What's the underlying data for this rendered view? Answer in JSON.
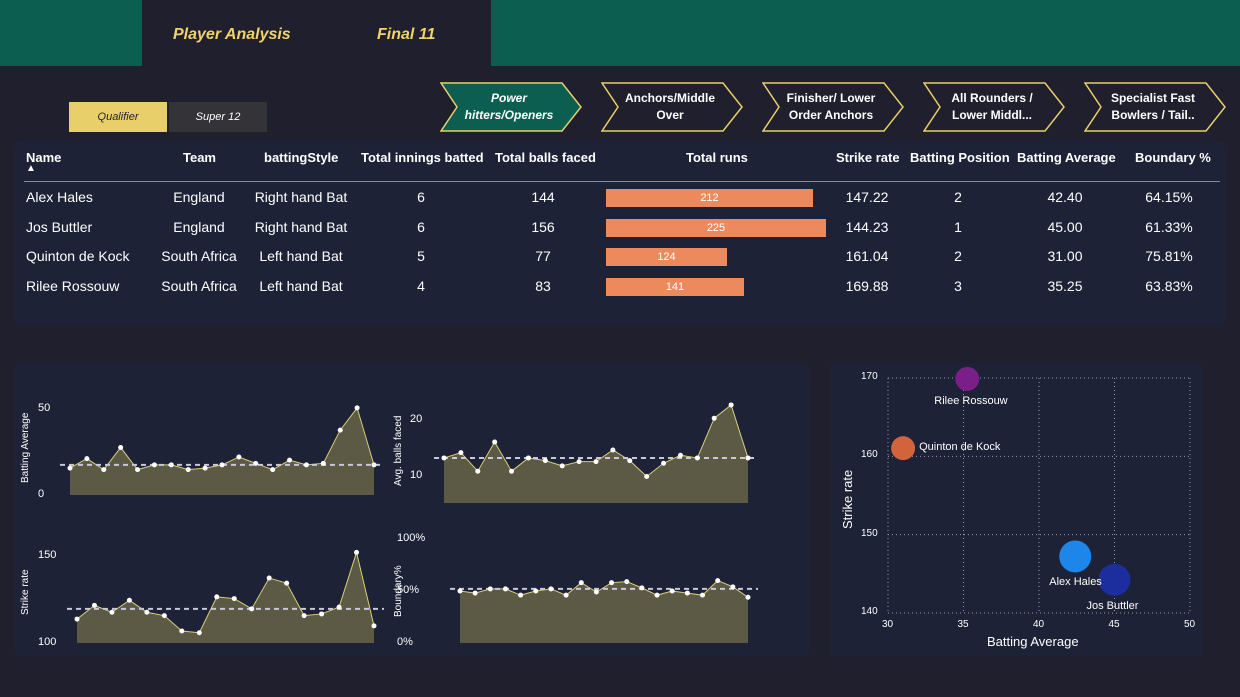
{
  "tabs": {
    "player_analysis": "Player Analysis",
    "final_11": "Final 11"
  },
  "stage_toggle": {
    "qualifier": "Qualifier",
    "super12": "Super 12"
  },
  "categories": [
    {
      "line1": "Power",
      "line2": "hitters/Openers"
    },
    {
      "line1": "Anchors/Middle",
      "line2": "Over"
    },
    {
      "line1": "Finisher/ Lower",
      "line2": "Order Anchors"
    },
    {
      "line1": "All Rounders /",
      "line2": "Lower Middl..."
    },
    {
      "line1": "Specialist Fast",
      "line2": "Bowlers / Tail.."
    }
  ],
  "table": {
    "headers": {
      "name": "Name",
      "team": "Team",
      "style": "battingStyle",
      "innings": "Total innings batted",
      "balls": "Total balls faced",
      "runs": "Total runs",
      "sr": "Strike rate",
      "pos": "Batting Position",
      "avg": "Batting Average",
      "bnd": "Boundary %"
    },
    "sort_arrow": "▲",
    "rows": [
      {
        "name": "Alex Hales",
        "team": "England",
        "style": "Right hand Bat",
        "innings": "6",
        "balls": "144",
        "runs": "212",
        "runs_value": 212,
        "sr": "147.22",
        "pos": "2",
        "avg": "42.40",
        "bnd": "64.15%"
      },
      {
        "name": "Jos Buttler",
        "team": "England",
        "style": "Right hand Bat",
        "innings": "6",
        "balls": "156",
        "runs": "225",
        "runs_value": 225,
        "sr": "144.23",
        "pos": "1",
        "avg": "45.00",
        "bnd": "61.33%"
      },
      {
        "name": "Quinton de Kock",
        "team": "South Africa",
        "style": "Left hand Bat",
        "innings": "5",
        "balls": "77",
        "runs": "124",
        "runs_value": 124,
        "sr": "161.04",
        "pos": "2",
        "avg": "31.00",
        "bnd": "75.81%"
      },
      {
        "name": "Rilee Rossouw",
        "team": "South Africa",
        "style": "Left hand Bat",
        "innings": "4",
        "balls": "83",
        "runs": "141",
        "runs_value": 141,
        "sr": "169.88",
        "pos": "3",
        "avg": "35.25",
        "bnd": "63.83%"
      }
    ]
  },
  "chart_data": [
    {
      "type": "area",
      "ylabel": "Batting Average",
      "yticks": [
        "50",
        "0"
      ],
      "ylim": [
        0,
        60
      ],
      "reference": 19,
      "values": [
        17,
        23,
        16,
        30,
        16,
        19,
        19,
        16,
        17,
        19,
        24,
        20,
        16,
        22,
        19,
        20,
        41,
        55,
        19
      ],
      "color": "#5c5a45"
    },
    {
      "type": "area",
      "ylabel": "Avg. balls faced",
      "yticks": [
        "20",
        "10"
      ],
      "ylim": [
        5,
        25
      ],
      "reference": 13.5,
      "values": [
        13.5,
        14.5,
        11,
        16.5,
        11,
        13.5,
        13,
        12,
        12.8,
        12.8,
        15,
        13,
        10,
        12.5,
        14,
        13.5,
        21,
        23.5,
        13.5
      ],
      "color": "#5c5a45"
    },
    {
      "type": "area",
      "ylabel": "Strike rate",
      "yticks": [
        "150",
        "100"
      ],
      "ylim": [
        100,
        155
      ],
      "reference": 120,
      "values": [
        114,
        122,
        118,
        125,
        118,
        116,
        107,
        106,
        127,
        126,
        120,
        138,
        135,
        116,
        117,
        121,
        153,
        110
      ],
      "color": "#5c5a45"
    },
    {
      "type": "area",
      "ylabel": "Boundary%",
      "yticks": [
        "100%",
        "50%",
        "0%"
      ],
      "ylim": [
        0,
        100
      ],
      "reference": 52,
      "values": [
        50,
        48,
        52,
        52,
        46,
        50,
        52,
        46,
        58,
        49,
        58,
        59,
        53,
        46,
        50,
        48,
        46,
        60,
        54,
        44
      ],
      "color": "#5c5a45"
    },
    {
      "type": "scatter",
      "xlabel": "Batting Average",
      "ylabel": "Strike rate",
      "xlim": [
        30,
        50
      ],
      "ylim": [
        140,
        170
      ],
      "xticks": [
        "30",
        "35",
        "40",
        "45",
        "50"
      ],
      "yticks": [
        "170",
        "160",
        "150",
        "140"
      ],
      "points": [
        {
          "label": "Rilee Rossouw",
          "x": 35.25,
          "y": 169.88,
          "color": "#7a1f8a"
        },
        {
          "label": "Quinton de Kock",
          "x": 31.0,
          "y": 161.04,
          "color": "#d2643c"
        },
        {
          "label": "Alex Hales",
          "x": 42.4,
          "y": 147.22,
          "color": "#1e86e8"
        },
        {
          "label": "Jos Buttler",
          "x": 45.0,
          "y": 144.23,
          "color": "#1c2d9e"
        }
      ]
    }
  ]
}
